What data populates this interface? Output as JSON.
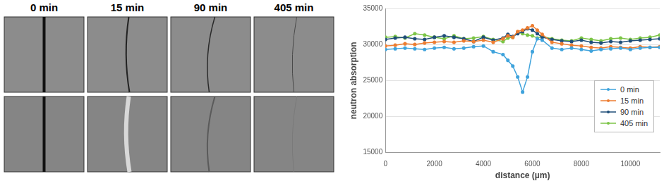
{
  "image_panels": {
    "labels": [
      "0 min",
      "15 min",
      "90 min",
      "405 min"
    ]
  },
  "chart_data": {
    "type": "line",
    "x_label": "distance (µm)",
    "y_label": "neutron absorption",
    "x": [
      0,
      400,
      800,
      1200,
      1600,
      2000,
      2400,
      2800,
      3200,
      3600,
      4000,
      4400,
      4800,
      5000,
      5200,
      5400,
      5600,
      5800,
      6000,
      6200,
      6400,
      6800,
      7200,
      7600,
      8000,
      8400,
      8800,
      9200,
      9600,
      10000,
      10400,
      10800,
      11200
    ],
    "series": [
      {
        "name": "0 min",
        "color": "#3fa3dc",
        "marker": "circle",
        "line_style": "solid",
        "values": [
          29300,
          29400,
          29500,
          29400,
          29300,
          29500,
          29600,
          29400,
          29500,
          29700,
          29800,
          29000,
          28600,
          27800,
          27000,
          25500,
          23400,
          25500,
          29000,
          30800,
          30600,
          29500,
          29300,
          29500,
          29300,
          29100,
          29300,
          29400,
          29500,
          29300,
          29500,
          29600,
          29600
        ]
      },
      {
        "name": "15 min",
        "color": "#ed7d31",
        "marker": "circle",
        "line_style": "solid",
        "values": [
          29800,
          29900,
          30100,
          30000,
          30200,
          30300,
          30400,
          30300,
          30500,
          30400,
          30600,
          30300,
          30800,
          31200,
          31000,
          31800,
          32000,
          32300,
          32600,
          32000,
          31400,
          30300,
          30100,
          29900,
          29800,
          29600,
          29500,
          29700,
          29600,
          29500,
          29700,
          29600,
          29700
        ]
      },
      {
        "name": "90 min",
        "color": "#1f4e79",
        "marker": "circle",
        "line_style": "solid",
        "values": [
          30700,
          30900,
          31000,
          30800,
          30700,
          31000,
          31200,
          31000,
          30800,
          30400,
          31000,
          30600,
          30900,
          31400,
          31100,
          31500,
          31800,
          32200,
          32000,
          31500,
          31000,
          30700,
          30500,
          30400,
          30600,
          30300,
          30200,
          30400,
          30300,
          30500,
          30600,
          30700,
          30800
        ]
      },
      {
        "name": "405 min",
        "color": "#7cc547",
        "marker": "circle",
        "line_style": "solid",
        "values": [
          31000,
          31100,
          30900,
          31500,
          31300,
          31000,
          30800,
          31200,
          30800,
          30900,
          31100,
          30700,
          30400,
          30900,
          31000,
          31700,
          31500,
          31300,
          31200,
          30900,
          31100,
          30800,
          30600,
          30500,
          30900,
          30700,
          30500,
          30800,
          30900,
          30700,
          30900,
          31000,
          31300
        ]
      }
    ],
    "xlim": [
      0,
      11200
    ],
    "xticks": [
      0,
      2000,
      4000,
      6000,
      8000,
      10000
    ],
    "ylim": [
      15000,
      35000
    ],
    "yticks": [
      15000,
      20000,
      25000,
      30000,
      35000
    ],
    "grid": true,
    "legend": "right"
  }
}
